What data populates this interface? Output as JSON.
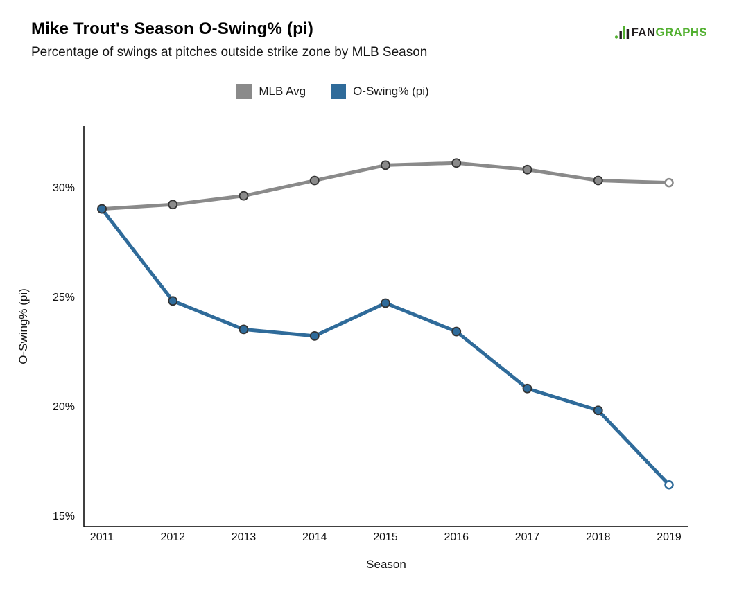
{
  "header": {
    "title": "Mike Trout's Season O-Swing% (pi)",
    "subtitle": "Percentage of swings at pitches outside strike zone by MLB Season"
  },
  "logo": {
    "brand_fan": "FAN",
    "brand_graphs": "GRAPHS",
    "green": "#52b030",
    "dark": "#231f20"
  },
  "chart_data": {
    "type": "line",
    "title": "Mike Trout's Season O-Swing% (pi)",
    "subtitle": "Percentage of swings at pitches outside strike zone by MLB Season",
    "xlabel": "Season",
    "ylabel": "O-Swing% (pi)",
    "categories": [
      "2011",
      "2012",
      "2013",
      "2014",
      "2015",
      "2016",
      "2017",
      "2018",
      "2019"
    ],
    "y_ticks": [
      15,
      20,
      25,
      30
    ],
    "y_tick_labels": [
      "15%",
      "20%",
      "25%",
      "30%"
    ],
    "ylim": [
      14.5,
      32.8
    ],
    "grid": false,
    "legend_position": "top",
    "series": [
      {
        "name": "MLB Avg",
        "color": "#8a8a8a",
        "values": [
          29.0,
          29.2,
          29.6,
          30.3,
          31.0,
          31.1,
          30.8,
          30.3,
          30.2
        ],
        "last_point_open": true
      },
      {
        "name": "O-Swing% (pi)",
        "color": "#2f6b9a",
        "values": [
          29.0,
          24.8,
          23.5,
          23.2,
          24.7,
          23.4,
          20.8,
          19.8,
          16.4
        ],
        "last_point_open": true
      }
    ]
  }
}
